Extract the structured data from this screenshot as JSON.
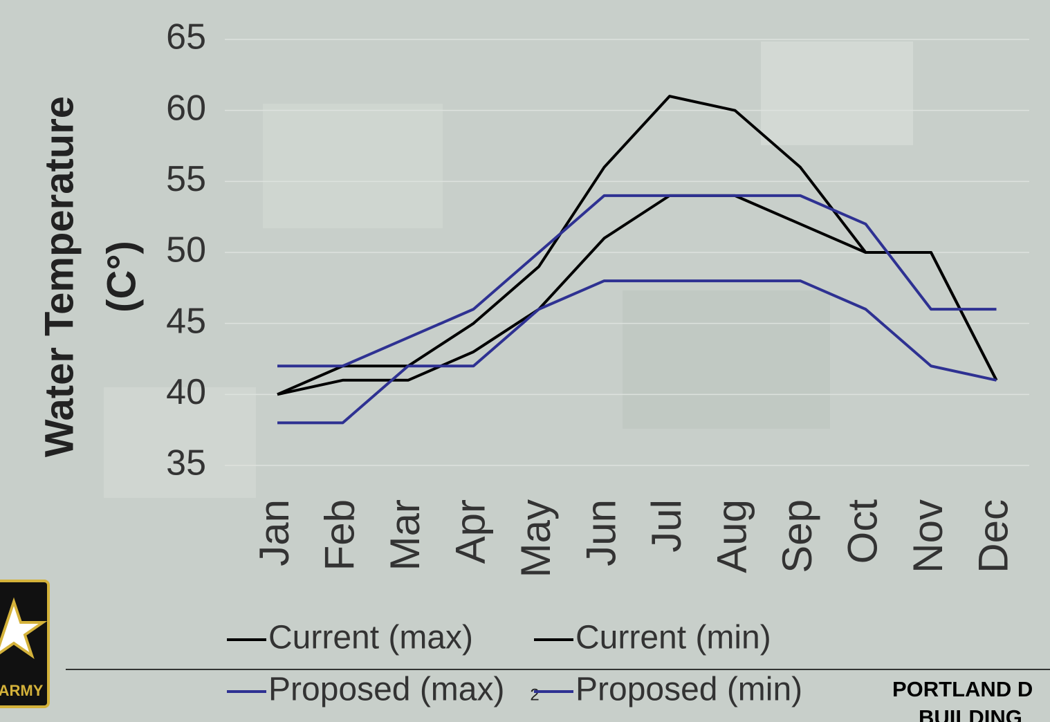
{
  "chart_data": {
    "type": "line",
    "y_label": [
      "Water Temperature",
      "(C°)"
    ],
    "categories": [
      "Jan",
      "Feb",
      "Mar",
      "Apr",
      "May",
      "Jun",
      "Jul",
      "Aug",
      "Sep",
      "Oct",
      "Nov",
      "Dec"
    ],
    "series": [
      {
        "name": "Current (max)",
        "color": "#000000",
        "values": [
          40,
          42,
          42,
          45,
          49,
          56,
          61,
          60,
          56,
          50,
          50,
          41
        ]
      },
      {
        "name": "Current (min)",
        "color": "#000000",
        "values": [
          40,
          41,
          41,
          43,
          46,
          51,
          54,
          54,
          52,
          50,
          50,
          41
        ]
      },
      {
        "name": "Proposed (max)",
        "color": "#2e3192",
        "values": [
          42,
          42,
          44,
          46,
          50,
          54,
          54,
          54,
          54,
          52,
          46,
          46
        ]
      },
      {
        "name": "Proposed (min)",
        "color": "#2e3192",
        "values": [
          38,
          38,
          42,
          42,
          46,
          48,
          48,
          48,
          48,
          46,
          42,
          41
        ]
      }
    ],
    "ylim": [
      35,
      65
    ],
    "yticks": [
      35,
      40,
      45,
      50,
      55,
      60,
      65
    ],
    "grid": true
  },
  "footer": {
    "page_number": "2",
    "org_line1": "PORTLAND D",
    "org_line2": "BUILDING",
    "logo_text": "ARMY"
  }
}
